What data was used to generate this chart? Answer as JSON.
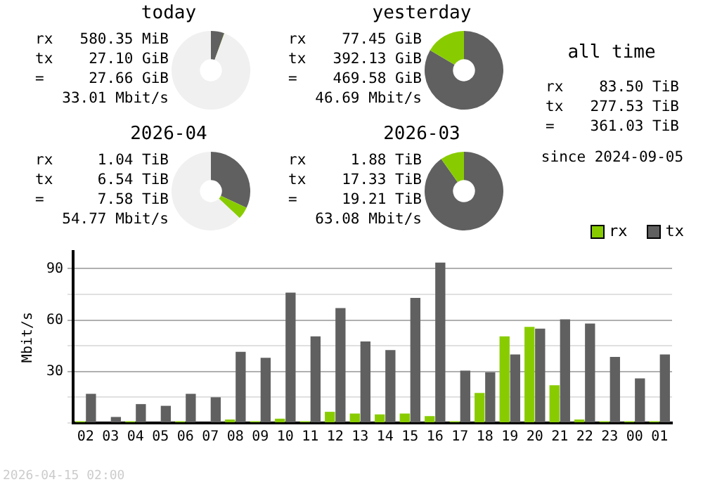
{
  "chart_data": [
    {
      "type": "donut",
      "title": "today",
      "categories": [
        null,
        null,
        null
      ],
      "values": [
        5.5,
        0.1,
        94.4
      ],
      "colors": [
        "#606060",
        "#88cc00",
        "#f0f0f0"
      ],
      "annotations": [
        "rx 580.35 MiB",
        "tx 27.10 GiB",
        "= 27.66 GiB",
        "33.01 Mbit/s"
      ]
    },
    {
      "type": "donut",
      "title": "yesterday",
      "categories": [
        null,
        null
      ],
      "values": [
        83.5,
        16.5
      ],
      "colors": [
        "#606060",
        "#88cc00"
      ],
      "annotations": [
        "rx 77.45 GiB",
        "tx 392.13 GiB",
        "= 469.58 GiB",
        "46.69 Mbit/s"
      ]
    },
    {
      "type": "other",
      "title": "all time",
      "annotations": [
        "rx 83.50 TiB",
        "tx 277.53 TiB",
        "= 361.03 TiB",
        "since 2024-09-05"
      ]
    },
    {
      "type": "donut",
      "title": "2026-04",
      "categories": [
        null,
        null,
        null
      ],
      "values": [
        32,
        5,
        63
      ],
      "colors": [
        "#606060",
        "#88cc00",
        "#f0f0f0"
      ],
      "annotations": [
        "rx 1.04 TiB",
        "tx 6.54 TiB",
        "= 7.58 TiB",
        "54.77 Mbit/s"
      ]
    },
    {
      "type": "donut",
      "title": "2026-03",
      "categories": [
        null,
        null
      ],
      "values": [
        90.2,
        9.8
      ],
      "colors": [
        "#606060",
        "#88cc00"
      ],
      "annotations": [
        "rx 1.88 TiB",
        "tx 17.33 TiB",
        "= 19.21 TiB",
        "63.08 Mbit/s"
      ]
    },
    {
      "type": "bar",
      "ylabel": "Mbit/s",
      "categories": [
        "02",
        "03",
        "04",
        "05",
        "06",
        "07",
        "08",
        "09",
        "10",
        "11",
        "12",
        "13",
        "14",
        "15",
        "16",
        "17",
        "18",
        "19",
        "20",
        "21",
        "22",
        "23",
        "00",
        "01"
      ],
      "series": [
        {
          "name": "rx",
          "color": "#88cc00",
          "values": [
            1,
            0,
            1,
            0,
            1,
            0,
            2,
            1,
            2.5,
            1,
            6.5,
            5.5,
            5,
            5.5,
            4,
            1,
            17.5,
            50.5,
            56,
            22,
            2,
            1,
            1,
            1
          ]
        },
        {
          "name": "tx",
          "color": "#606060",
          "values": [
            17,
            3.5,
            11,
            10,
            17,
            15,
            41.5,
            38,
            76,
            50.5,
            67,
            47.5,
            42.5,
            73,
            93.5,
            30.5,
            29.5,
            40,
            55,
            60.5,
            58,
            38.5,
            26,
            40
          ]
        }
      ],
      "ylim": [
        0,
        100
      ],
      "yticks": [
        {
          "value": 0,
          "label": null
        },
        {
          "value": 15,
          "label": null
        },
        30,
        {
          "value": 45,
          "label": null
        },
        60,
        {
          "value": 75,
          "label": null
        },
        90
      ],
      "grid": "y",
      "legend": "top right",
      "annotations": [
        "2026-04-15 02:00"
      ]
    }
  ]
}
